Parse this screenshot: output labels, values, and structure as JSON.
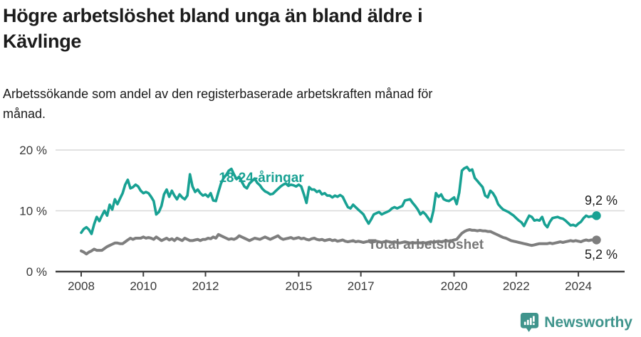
{
  "header": {
    "title_lines": [
      "Högre arbetslöshet bland unga än bland äldre i",
      "Kävlinge"
    ],
    "subtitle_lines": [
      "Arbetssökande som andel av den registerbaserade arbetskraften månad för",
      "månad."
    ]
  },
  "footer": {
    "brand": "Newsworthy",
    "logo_icon": "speech-bubble-bar-chart-icon"
  },
  "colors": {
    "young_line": "#18a193",
    "total_line": "#7e7e7e",
    "grid": "#d9d9d9",
    "axis": "#3f3f3f",
    "text": "#1a1a1a",
    "brand_teal": "#3f948c"
  },
  "chart_data": {
    "type": "line",
    "title": "Högre arbetslöshet bland unga än bland äldre i Kävlinge",
    "subtitle": "Arbetssökande som andel av den registerbaserade arbetskraften månad för månad.",
    "xlabel": "",
    "ylabel": "",
    "x_unit": "monthly, decimal years from 2008-01 to 2024-08",
    "x_start_year": 2008,
    "months_per_point": 1,
    "x_ticks": [
      2008,
      2010,
      2012,
      2015,
      2017,
      2020,
      2022,
      2024
    ],
    "y_ticks": [
      {
        "v": 0,
        "label": "0 %"
      },
      {
        "v": 10,
        "label": "10 %"
      },
      {
        "v": 20,
        "label": "20 %"
      }
    ],
    "ylim": [
      0,
      21.8
    ],
    "grid": "horizontal-only",
    "legend_position": "inline-labels-on-lines",
    "series": [
      {
        "name": "18-24-åringar",
        "color": "#18a193",
        "end_label": "9,2 %",
        "end_value": 9.2,
        "values": [
          6.4,
          7.0,
          7.3,
          6.9,
          6.2,
          7.8,
          9.0,
          8.3,
          9.2,
          10.0,
          9.2,
          11.0,
          10.2,
          11.9,
          11.1,
          12.0,
          12.9,
          14.3,
          15.1,
          13.7,
          13.9,
          14.3,
          14.0,
          13.3,
          12.9,
          13.1,
          12.9,
          12.3,
          11.6,
          9.4,
          9.8,
          10.8,
          12.7,
          13.5,
          12.3,
          13.3,
          12.5,
          11.9,
          12.7,
          12.2,
          11.9,
          12.5,
          16.0,
          14.0,
          13.1,
          13.5,
          12.9,
          12.5,
          12.7,
          12.3,
          12.9,
          11.7,
          11.6,
          13.1,
          14.5,
          15.4,
          15.9,
          16.6,
          16.9,
          16.0,
          15.2,
          15.6,
          14.8,
          14.0,
          13.7,
          14.5,
          14.9,
          15.3,
          14.6,
          14.2,
          13.6,
          13.2,
          13.0,
          12.7,
          12.8,
          13.2,
          13.6,
          14.0,
          14.3,
          14.5,
          14.1,
          14.3,
          14.2,
          14.0,
          14.3,
          14.0,
          12.7,
          11.3,
          13.9,
          13.5,
          13.5,
          13.1,
          13.3,
          12.7,
          12.9,
          12.5,
          12.5,
          12.2,
          12.5,
          12.3,
          12.6,
          12.3,
          11.4,
          10.6,
          10.4,
          11.0,
          10.6,
          10.2,
          9.8,
          9.4,
          8.6,
          7.9,
          8.6,
          9.4,
          9.6,
          9.8,
          9.4,
          9.6,
          9.8,
          10.0,
          10.4,
          10.6,
          10.4,
          10.6,
          10.8,
          11.7,
          11.8,
          11.9,
          11.3,
          10.8,
          10.2,
          9.4,
          9.8,
          9.4,
          8.8,
          8.2,
          10.0,
          12.9,
          12.3,
          12.7,
          11.9,
          11.7,
          11.6,
          11.9,
          12.2,
          11.1,
          13.0,
          16.6,
          17.0,
          17.2,
          16.6,
          16.8,
          15.4,
          14.9,
          14.4,
          13.9,
          12.5,
          12.2,
          13.3,
          12.9,
          12.2,
          11.1,
          10.6,
          10.2,
          10.0,
          9.8,
          9.5,
          9.2,
          8.8,
          8.4,
          8.1,
          7.5,
          8.4,
          9.2,
          9.0,
          8.4,
          8.5,
          8.4,
          9.0,
          7.8,
          7.3,
          8.2,
          8.8,
          8.9,
          9.0,
          8.8,
          8.7,
          8.4,
          8.0,
          7.6,
          7.7,
          7.5,
          7.9,
          8.2,
          8.8,
          9.2,
          9.0,
          9.1,
          9.0,
          9.2
        ]
      },
      {
        "name": "Total arbetslöshet",
        "color": "#7e7e7e",
        "end_label": "5,2 %",
        "end_value": 5.2,
        "values": [
          3.4,
          3.2,
          2.9,
          3.2,
          3.4,
          3.7,
          3.5,
          3.5,
          3.5,
          3.8,
          4.1,
          4.3,
          4.5,
          4.7,
          4.7,
          4.6,
          4.6,
          4.9,
          5.2,
          5.5,
          5.3,
          5.5,
          5.5,
          5.5,
          5.7,
          5.5,
          5.6,
          5.5,
          5.3,
          5.7,
          5.4,
          5.1,
          5.3,
          5.5,
          5.2,
          5.4,
          5.1,
          5.5,
          5.3,
          5.1,
          5.5,
          5.3,
          5.1,
          5.1,
          5.2,
          5.3,
          5.1,
          5.3,
          5.3,
          5.5,
          5.4,
          5.7,
          5.5,
          6.1,
          5.9,
          5.7,
          5.5,
          5.3,
          5.4,
          5.3,
          5.5,
          5.9,
          5.7,
          5.5,
          5.3,
          5.1,
          5.3,
          5.5,
          5.4,
          5.3,
          5.5,
          5.7,
          5.5,
          5.3,
          5.5,
          5.7,
          5.9,
          5.5,
          5.3,
          5.4,
          5.5,
          5.6,
          5.4,
          5.5,
          5.6,
          5.4,
          5.5,
          5.3,
          5.2,
          5.4,
          5.5,
          5.3,
          5.2,
          5.3,
          5.1,
          5.2,
          5.3,
          5.1,
          5.2,
          5.0,
          5.1,
          5.2,
          5.0,
          4.9,
          5.0,
          5.1,
          4.9,
          5.0,
          4.9,
          4.8,
          4.9,
          5.0,
          4.8,
          4.9,
          5.0,
          4.9,
          4.8,
          4.9,
          5.0,
          4.9,
          4.8,
          4.9,
          4.8,
          4.7,
          4.8,
          4.9,
          4.8,
          4.7,
          4.8,
          4.7,
          4.8,
          4.7,
          4.8,
          4.7,
          4.8,
          4.9,
          4.8,
          4.9,
          5.0,
          4.9,
          5.0,
          5.1,
          5.0,
          5.1,
          5.2,
          5.3,
          5.8,
          6.3,
          6.6,
          6.8,
          6.9,
          6.8,
          6.8,
          6.7,
          6.8,
          6.7,
          6.7,
          6.6,
          6.6,
          6.4,
          6.2,
          6.0,
          5.8,
          5.6,
          5.5,
          5.3,
          5.1,
          5.0,
          4.9,
          4.8,
          4.7,
          4.6,
          4.5,
          4.4,
          4.3,
          4.4,
          4.5,
          4.6,
          4.6,
          4.6,
          4.6,
          4.7,
          4.6,
          4.7,
          4.8,
          4.9,
          4.8,
          4.9,
          5.0,
          5.1,
          5.0,
          5.1,
          5.0,
          4.9,
          5.1,
          5.2,
          5.1,
          5.2,
          5.2,
          5.2
        ]
      }
    ]
  }
}
